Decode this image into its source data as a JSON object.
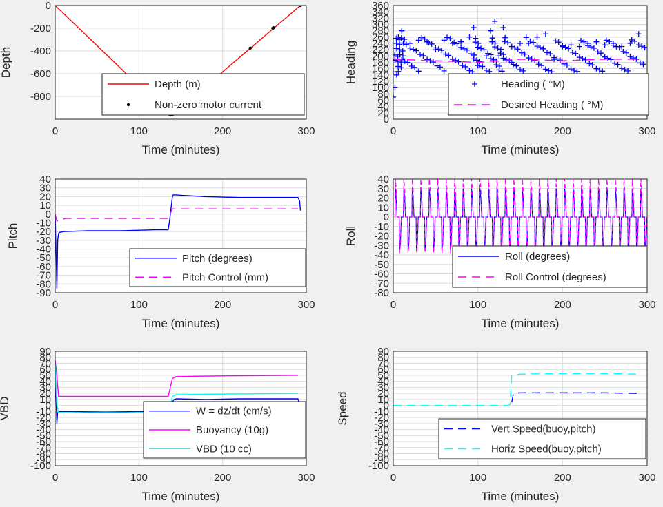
{
  "colors": {
    "background": "#f0f0f0",
    "axes_bg": "#ffffff",
    "grid": "#dcdcdc",
    "red": "#ff0000",
    "blue": "#0000ff",
    "magenta": "#ff00ff",
    "cyan": "#00ffff",
    "black": "#000000"
  },
  "chart_data": [
    {
      "id": "depth",
      "type": "line",
      "xlabel": "Time (minutes)",
      "ylabel": "Depth",
      "xlim": [
        0,
        300
      ],
      "ylim": [
        -1000,
        0
      ],
      "xticks": [
        "0",
        "100",
        "200",
        "300"
      ],
      "yticks": [
        "0",
        "-200",
        "-400",
        "-600",
        "-800"
      ],
      "grid": true,
      "legend_position": "bottom-center",
      "series": [
        {
          "name": "Depth (m)",
          "style": "solid",
          "color": "red",
          "x": [
            0,
            136,
            140,
            293
          ],
          "y": [
            0,
            -960,
            -960,
            0
          ]
        },
        {
          "name": "Non-zero motor current",
          "style": "dot",
          "color": "black",
          "x": [
            136,
            137,
            138,
            139,
            140,
            141,
            142,
            143,
            233,
            260,
            261,
            293
          ],
          "y": [
            -955,
            -958,
            -960,
            -958,
            -960,
            -955,
            -950,
            -945,
            -375,
            -200,
            -195,
            0
          ]
        }
      ]
    },
    {
      "id": "heading",
      "type": "scatter",
      "xlabel": "Time (minutes)",
      "ylabel": "Heading",
      "xlim": [
        0,
        300
      ],
      "ylim": [
        0,
        360
      ],
      "xticks": [
        "0",
        "100",
        "200",
        "300"
      ],
      "yticks": [
        "0",
        "20",
        "40",
        "60",
        "80",
        "100",
        "120",
        "140",
        "160",
        "180",
        "200",
        "220",
        "240",
        "260",
        "280",
        "300",
        "320",
        "340",
        "360"
      ],
      "grid": true,
      "legend_position": "bottom-right",
      "series": [
        {
          "name": "Heading ( °M)",
          "style": "plus",
          "color": "blue",
          "x": [
            0,
            2,
            4,
            6,
            10,
            20,
            30,
            40,
            50,
            60,
            70,
            80,
            90,
            95,
            100,
            110,
            115,
            120,
            125,
            130,
            140,
            150,
            160,
            170,
            180,
            190,
            200,
            210,
            220,
            230,
            240,
            250,
            260,
            270,
            280,
            290
          ],
          "y": [
            70,
            100,
            140,
            260,
            280,
            240,
            250,
            245,
            220,
            250,
            240,
            245,
            260,
            290,
            170,
            200,
            280,
            310,
            200,
            290,
            180,
            240,
            240,
            260,
            270,
            190,
            230,
            235,
            230,
            240,
            245,
            235,
            240,
            230,
            240,
            270
          ],
          "range_low": 150,
          "range_high": 260
        },
        {
          "name": "Desired Heading (   °M)",
          "style": "dash",
          "color": "magenta",
          "x": [
            0,
            50,
            100,
            150,
            200,
            250,
            290
          ],
          "y": [
            190,
            185,
            180,
            190,
            185,
            190,
            190
          ]
        }
      ]
    },
    {
      "id": "pitch",
      "type": "line",
      "xlabel": "Time (minutes)",
      "ylabel": "Pitch",
      "xlim": [
        0,
        300
      ],
      "ylim": [
        -90,
        40
      ],
      "xticks": [
        "0",
        "100",
        "200",
        "300"
      ],
      "yticks": [
        "40",
        "30",
        "20",
        "10",
        "0",
        "-10",
        "-20",
        "-30",
        "-40",
        "-50",
        "-60",
        "-70",
        "-80",
        "-90"
      ],
      "grid": true,
      "legend_position": "bottom-right",
      "series": [
        {
          "name": "Pitch (degrees)",
          "style": "solid",
          "color": "blue",
          "x": [
            0,
            2,
            3,
            4,
            5,
            10,
            40,
            80,
            120,
            135,
            137,
            140,
            141,
            180,
            220,
            260,
            290,
            292,
            293
          ],
          "y": [
            0,
            -85,
            -30,
            -22,
            -21,
            -20,
            -19,
            -19,
            -18,
            -18,
            -5,
            20,
            22,
            20,
            19,
            19,
            19,
            15,
            4
          ]
        },
        {
          "name": "Pitch Control (mm)",
          "style": "dash",
          "color": "magenta",
          "x": [
            0,
            2,
            12,
            135,
            140,
            290
          ],
          "y": [
            0,
            -8,
            -5,
            -5,
            6,
            6
          ]
        }
      ]
    },
    {
      "id": "roll",
      "type": "line",
      "xlabel": "Time (minutes)",
      "ylabel": "Roll",
      "xlim": [
        0,
        300
      ],
      "ylim": [
        -80,
        40
      ],
      "xticks": [
        "0",
        "100",
        "200",
        "300"
      ],
      "yticks": [
        "40",
        "30",
        "20",
        "10",
        "0",
        "-10",
        "-20",
        "-30",
        "-40",
        "-50",
        "-60",
        "-70",
        "-80"
      ],
      "grid": true,
      "legend_position": "bottom-right",
      "series": [
        {
          "name": "Roll (degrees)",
          "style": "solid",
          "color": "blue",
          "oscillation": {
            "x_start": 2,
            "x_end": 292,
            "period": 10,
            "amplitude_high": 30,
            "amplitude_low": -35,
            "baseline": 0
          }
        },
        {
          "name": "Roll Control (degrees)",
          "style": "dash",
          "color": "magenta",
          "oscillation": {
            "x_start": 2,
            "x_end": 292,
            "period": 10,
            "amplitude_high": 40,
            "amplitude_low": -38,
            "baseline": 0
          }
        }
      ]
    },
    {
      "id": "vbd",
      "type": "line",
      "xlabel": "Time (minutes)",
      "ylabel": "VBD",
      "xlim": [
        0,
        300
      ],
      "ylim": [
        -100,
        90
      ],
      "xticks": [
        "0",
        "100",
        "200",
        "300"
      ],
      "yticks": [
        "90",
        "80",
        "70",
        "60",
        "50",
        "40",
        "30",
        "20",
        "10",
        "0",
        "-10",
        "-20",
        "-30",
        "-40",
        "-50",
        "-60",
        "-70",
        "-80",
        "-90",
        "-100"
      ],
      "grid": true,
      "legend_position": "bottom-right",
      "series": [
        {
          "name": "W = dz/dt (cm/s)",
          "style": "solid",
          "color": "blue",
          "x": [
            0,
            2,
            3,
            5,
            20,
            60,
            100,
            135,
            138,
            142,
            145,
            180,
            220,
            260,
            290,
            292
          ],
          "y": [
            60,
            -30,
            -12,
            -10,
            -10,
            -11,
            -10,
            -10,
            2,
            10,
            11,
            10,
            11,
            11,
            11,
            3
          ]
        },
        {
          "name": "Buoyancy (10g)",
          "style": "solid",
          "color": "magenta",
          "x": [
            0,
            2,
            4,
            135,
            140,
            145,
            200,
            290
          ],
          "y": [
            75,
            50,
            15,
            15,
            45,
            48,
            49,
            50
          ]
        },
        {
          "name": "VBD (10 cc)",
          "style": "solid",
          "color": "cyan",
          "x": [
            0,
            2,
            4,
            135,
            140,
            145,
            290
          ],
          "y": [
            70,
            0,
            -12,
            -12,
            15,
            18,
            20
          ]
        }
      ]
    },
    {
      "id": "speed",
      "type": "line",
      "xlabel": "Time (minutes)",
      "ylabel": "Speed",
      "xlim": [
        0,
        300
      ],
      "ylim": [
        -100,
        90
      ],
      "xticks": [
        "0",
        "100",
        "200",
        "300"
      ],
      "yticks": [
        "90",
        "80",
        "70",
        "60",
        "50",
        "40",
        "30",
        "20",
        "10",
        "0",
        "-10",
        "-20",
        "-30",
        "-40",
        "-50",
        "-60",
        "-70",
        "-80",
        "-90",
        "-100"
      ],
      "grid": true,
      "legend_position": "bottom-right",
      "series": [
        {
          "name": "Vert Speed(buoy,pitch)",
          "style": "dash",
          "color": "blue",
          "x": [
            140,
            142,
            150,
            200,
            250,
            290
          ],
          "y": [
            5,
            20,
            21,
            21,
            21,
            20
          ]
        },
        {
          "name": "Horiz Speed(buoy,pitch)",
          "style": "dash",
          "color": "cyan",
          "x": [
            0,
            135,
            138,
            140,
            150,
            200,
            250,
            290
          ],
          "y": [
            0,
            0,
            2,
            50,
            52,
            53,
            53,
            52
          ]
        }
      ]
    }
  ]
}
